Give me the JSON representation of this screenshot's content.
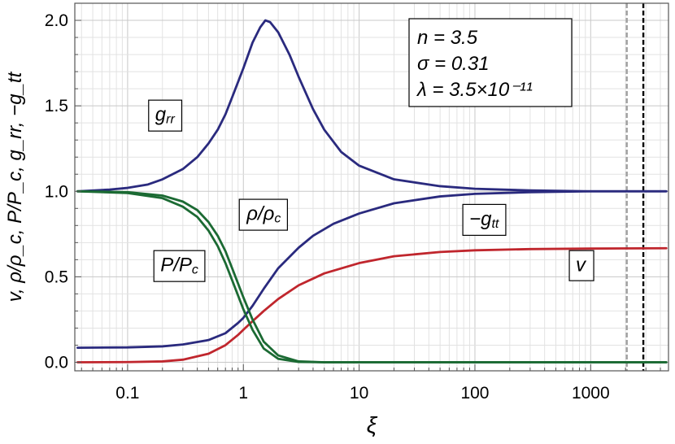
{
  "chart_data": {
    "type": "line",
    "xlabel": "ξ",
    "ylabel": "v,  ρ/ρ_c,  P/P_c,  g_rr,  −g_tt",
    "x_scale": "log",
    "xlim": [
      0.035,
      4700
    ],
    "ylim": [
      -0.05,
      2.1
    ],
    "grid": true,
    "x_ticks": [
      {
        "value": 0.1,
        "label": "0.1"
      },
      {
        "value": 1,
        "label": "1"
      },
      {
        "value": 10,
        "label": "10"
      },
      {
        "value": 100,
        "label": "100"
      },
      {
        "value": 1000,
        "label": "1000"
      }
    ],
    "y_ticks": [
      {
        "value": 0.0,
        "label": "0.0"
      },
      {
        "value": 0.5,
        "label": "0.5"
      },
      {
        "value": 1.0,
        "label": "1.0"
      },
      {
        "value": 1.5,
        "label": "1.5"
      },
      {
        "value": 2.0,
        "label": "2.0"
      }
    ],
    "parameters": [
      "n = 3.5",
      "σ = 0.31",
      "λ = 3.5×10⁻¹¹"
    ],
    "vertical_lines": [
      {
        "x": 2050,
        "style": "dashed",
        "color": "#a0a0a0"
      },
      {
        "x": 2850,
        "style": "dashed",
        "color": "#000000"
      }
    ],
    "series": [
      {
        "name": "g_rr",
        "color": "#2a2a7e",
        "points": [
          [
            0.037,
            1.0
          ],
          [
            0.07,
            1.01
          ],
          [
            0.1,
            1.02
          ],
          [
            0.15,
            1.04
          ],
          [
            0.2,
            1.07
          ],
          [
            0.3,
            1.13
          ],
          [
            0.4,
            1.2
          ],
          [
            0.5,
            1.28
          ],
          [
            0.6,
            1.36
          ],
          [
            0.7,
            1.45
          ],
          [
            0.8,
            1.55
          ],
          [
            0.9,
            1.64
          ],
          [
            1.0,
            1.72
          ],
          [
            1.2,
            1.87
          ],
          [
            1.4,
            1.96
          ],
          [
            1.55,
            2.0
          ],
          [
            1.7,
            1.99
          ],
          [
            2.0,
            1.93
          ],
          [
            2.5,
            1.8
          ],
          [
            3.0,
            1.67
          ],
          [
            4.0,
            1.48
          ],
          [
            5.0,
            1.36
          ],
          [
            7.0,
            1.23
          ],
          [
            10,
            1.15
          ],
          [
            20,
            1.07
          ],
          [
            50,
            1.03
          ],
          [
            100,
            1.015
          ],
          [
            300,
            1.005
          ],
          [
            1000,
            1.0
          ],
          [
            4500,
            1.0
          ]
        ]
      },
      {
        "name": "−g_tt",
        "color": "#2a2a7e",
        "points": [
          [
            0.037,
            0.085
          ],
          [
            0.1,
            0.087
          ],
          [
            0.2,
            0.093
          ],
          [
            0.3,
            0.104
          ],
          [
            0.5,
            0.13
          ],
          [
            0.7,
            0.17
          ],
          [
            0.9,
            0.23
          ],
          [
            1.0,
            0.26
          ],
          [
            1.2,
            0.33
          ],
          [
            1.5,
            0.43
          ],
          [
            2.0,
            0.55
          ],
          [
            3.0,
            0.67
          ],
          [
            4.0,
            0.74
          ],
          [
            6.0,
            0.81
          ],
          [
            10,
            0.87
          ],
          [
            20,
            0.93
          ],
          [
            50,
            0.97
          ],
          [
            100,
            0.985
          ],
          [
            300,
            0.995
          ],
          [
            1000,
            1.0
          ],
          [
            4500,
            1.0
          ]
        ]
      },
      {
        "name": "v",
        "color": "#c0262d",
        "points": [
          [
            0.037,
            0.0
          ],
          [
            0.1,
            0.001
          ],
          [
            0.2,
            0.005
          ],
          [
            0.3,
            0.015
          ],
          [
            0.5,
            0.05
          ],
          [
            0.7,
            0.1
          ],
          [
            0.9,
            0.16
          ],
          [
            1.0,
            0.19
          ],
          [
            1.2,
            0.24
          ],
          [
            1.5,
            0.3
          ],
          [
            2.0,
            0.37
          ],
          [
            3.0,
            0.45
          ],
          [
            5.0,
            0.52
          ],
          [
            10,
            0.58
          ],
          [
            20,
            0.62
          ],
          [
            50,
            0.645
          ],
          [
            100,
            0.655
          ],
          [
            300,
            0.662
          ],
          [
            1000,
            0.665
          ],
          [
            4500,
            0.667
          ]
        ]
      },
      {
        "name": "ρ/ρ_c",
        "color": "#1b6a33",
        "points": [
          [
            0.037,
            1.0
          ],
          [
            0.1,
            0.995
          ],
          [
            0.2,
            0.975
          ],
          [
            0.3,
            0.94
          ],
          [
            0.4,
            0.89
          ],
          [
            0.5,
            0.82
          ],
          [
            0.6,
            0.74
          ],
          [
            0.7,
            0.65
          ],
          [
            0.8,
            0.55
          ],
          [
            0.9,
            0.46
          ],
          [
            1.0,
            0.38
          ],
          [
            1.2,
            0.25
          ],
          [
            1.5,
            0.12
          ],
          [
            2.0,
            0.04
          ],
          [
            3.0,
            0.005
          ],
          [
            5.0,
            0.0
          ],
          [
            4500,
            0.0
          ]
        ]
      },
      {
        "name": "P/P_c",
        "color": "#1b6a33",
        "points": [
          [
            0.037,
            1.0
          ],
          [
            0.1,
            0.99
          ],
          [
            0.2,
            0.96
          ],
          [
            0.3,
            0.91
          ],
          [
            0.4,
            0.85
          ],
          [
            0.5,
            0.77
          ],
          [
            0.6,
            0.68
          ],
          [
            0.7,
            0.58
          ],
          [
            0.8,
            0.48
          ],
          [
            0.9,
            0.39
          ],
          [
            1.0,
            0.31
          ],
          [
            1.2,
            0.19
          ],
          [
            1.5,
            0.08
          ],
          [
            2.0,
            0.02
          ],
          [
            3.0,
            0.002
          ],
          [
            5.0,
            0.0
          ],
          [
            4500,
            0.0
          ]
        ]
      }
    ],
    "annotations": [
      {
        "text": "g",
        "sub": "rr",
        "prefix": "",
        "x": 0.21,
        "y": 1.45
      },
      {
        "text": "ρ/ρ",
        "sub": "c",
        "prefix": "",
        "x": 1.5,
        "y": 0.87
      },
      {
        "text": "P/P",
        "sub": "c",
        "prefix": "",
        "x": 0.28,
        "y": 0.57
      },
      {
        "text": "g",
        "sub": "tt",
        "prefix": "−",
        "x": 120,
        "y": 0.84
      },
      {
        "text": "v",
        "sub": "",
        "prefix": "",
        "x": 820,
        "y": 0.57
      }
    ]
  }
}
